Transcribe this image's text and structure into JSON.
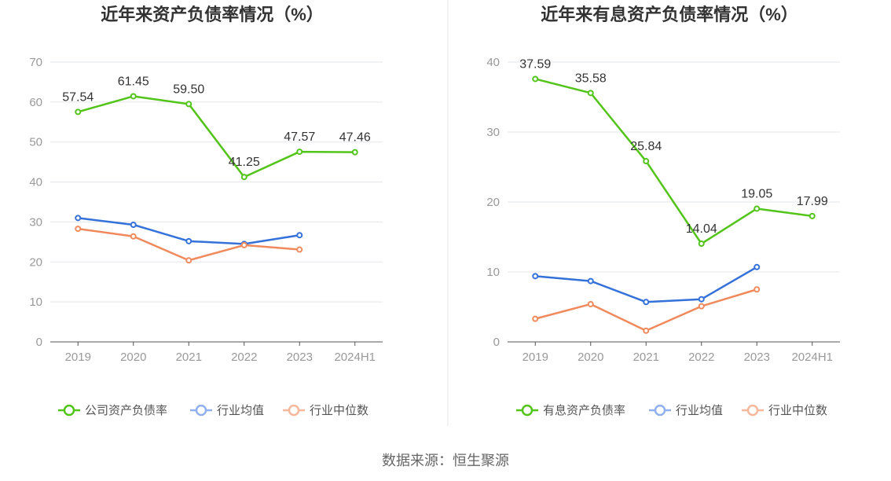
{
  "source_text": "数据来源：恒生聚源",
  "colors": {
    "company": "#52c41a",
    "industry_avg": "#3471d9",
    "industry_median": "#f08a5d",
    "legend_avg_marker": "#8fb0ec",
    "legend_median_marker": "#f6b79b",
    "grid": "#e3e6ea",
    "axis": "#555555",
    "divider": "#e6e6e6"
  },
  "chart_data": [
    {
      "type": "line",
      "title": "近年来资产负债率情况（%）",
      "categories": [
        "2019",
        "2020",
        "2021",
        "2022",
        "2023",
        "2024H1"
      ],
      "ylim": [
        0,
        70
      ],
      "yticks": [
        0,
        10,
        20,
        30,
        40,
        50,
        60,
        70
      ],
      "grid": true,
      "legend": "bottom",
      "series": [
        {
          "name": "公司资产负债率",
          "key": "company",
          "values": [
            57.54,
            61.45,
            59.5,
            41.25,
            47.57,
            47.46
          ],
          "labels": [
            "57.54",
            "61.45",
            "59.50",
            "41.25",
            "47.57",
            "47.46"
          ]
        },
        {
          "name": "行业均值",
          "key": "industry_avg",
          "values": [
            31.0,
            29.3,
            25.2,
            24.5,
            26.7,
            null
          ]
        },
        {
          "name": "行业中位数",
          "key": "industry_median",
          "values": [
            28.3,
            26.4,
            20.4,
            24.2,
            23.1,
            null
          ]
        }
      ]
    },
    {
      "type": "line",
      "title": "近年来有息资产负债率情况（%）",
      "categories": [
        "2019",
        "2020",
        "2021",
        "2022",
        "2023",
        "2024H1"
      ],
      "ylim": [
        0,
        40
      ],
      "yticks": [
        0,
        10,
        20,
        30,
        40
      ],
      "grid": true,
      "legend": "bottom",
      "series": [
        {
          "name": "有息资产负债率",
          "key": "company",
          "values": [
            37.59,
            35.58,
            25.84,
            14.04,
            19.05,
            17.99
          ],
          "labels": [
            "37.59",
            "35.58",
            "25.84",
            "14.04",
            "19.05",
            "17.99"
          ]
        },
        {
          "name": "行业均值",
          "key": "industry_avg",
          "values": [
            9.4,
            8.7,
            5.7,
            6.1,
            10.7,
            null
          ]
        },
        {
          "name": "行业中位数",
          "key": "industry_median",
          "values": [
            3.3,
            5.4,
            1.6,
            5.1,
            7.5,
            null
          ]
        }
      ]
    }
  ]
}
